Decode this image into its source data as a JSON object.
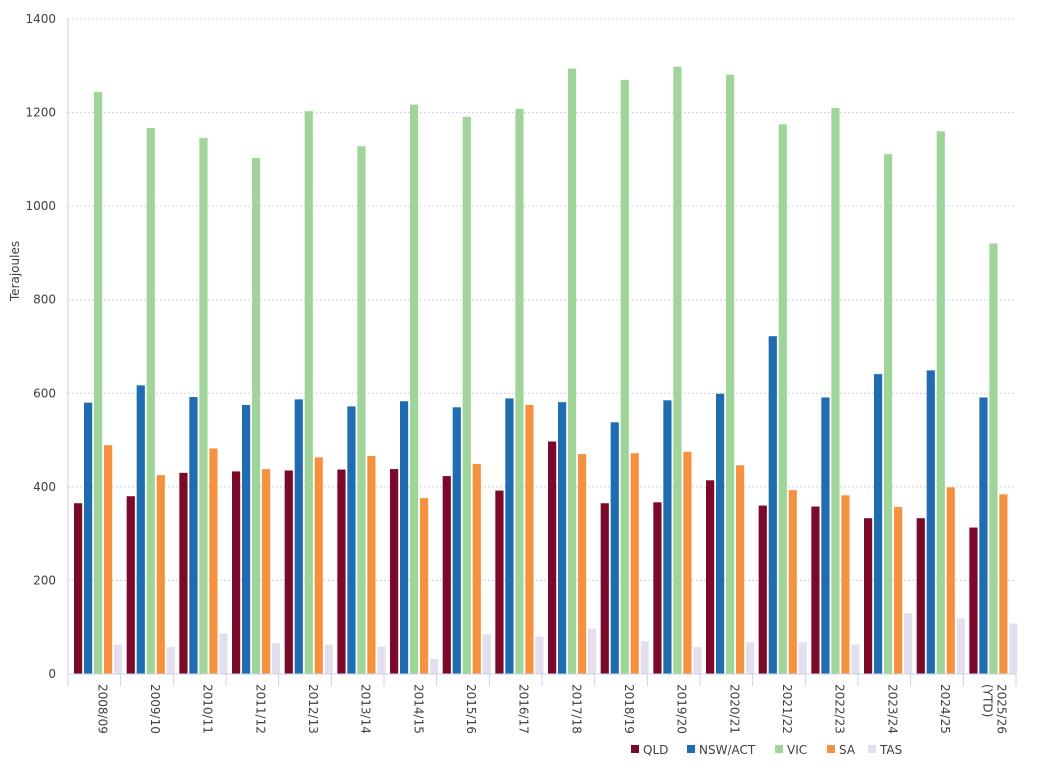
{
  "chart_data": {
    "type": "bar",
    "title": "",
    "xlabel": "",
    "ylabel": "Terajoules",
    "ylim": [
      0,
      1400
    ],
    "yticks": [
      0,
      200,
      400,
      600,
      800,
      1000,
      1200,
      1400
    ],
    "grid": true,
    "legend_position": "bottom-right",
    "categories": [
      "2008/09",
      "2009/10",
      "2010/11",
      "2011/12",
      "2012/13",
      "2013/14",
      "2014/15",
      "2015/16",
      "2016/17",
      "2017/18",
      "2018/19",
      "2019/20",
      "2020/21",
      "2021/22",
      "2022/23",
      "2023/24",
      "2024/25",
      "2025/26 (YTD)"
    ],
    "series": [
      {
        "name": "QLD",
        "color": "#7b0a2a",
        "values": [
          365,
          380,
          430,
          433,
          435,
          437,
          438,
          423,
          392,
          497,
          365,
          367,
          414,
          360,
          358,
          333,
          333,
          313
        ]
      },
      {
        "name": "NSW/ACT",
        "color": "#1f6cb0",
        "values": [
          580,
          617,
          592,
          575,
          587,
          572,
          583,
          570,
          589,
          581,
          538,
          585,
          599,
          722,
          591,
          641,
          649,
          591
        ]
      },
      {
        "name": "VIC",
        "color": "#9fd598",
        "values": [
          1244,
          1167,
          1146,
          1103,
          1203,
          1128,
          1217,
          1191,
          1208,
          1294,
          1270,
          1298,
          1281,
          1175,
          1210,
          1111,
          1160,
          920
        ]
      },
      {
        "name": "SA",
        "color": "#f6923f",
        "values": [
          489,
          425,
          482,
          438,
          463,
          466,
          376,
          449,
          575,
          470,
          472,
          475,
          446,
          393,
          382,
          357,
          399,
          384
        ]
      },
      {
        "name": "TAS",
        "color": "#e4dfee",
        "values": [
          63,
          58,
          87,
          66,
          63,
          59,
          32,
          85,
          80,
          97,
          70,
          58,
          68,
          68,
          63,
          130,
          119,
          108
        ]
      }
    ]
  }
}
